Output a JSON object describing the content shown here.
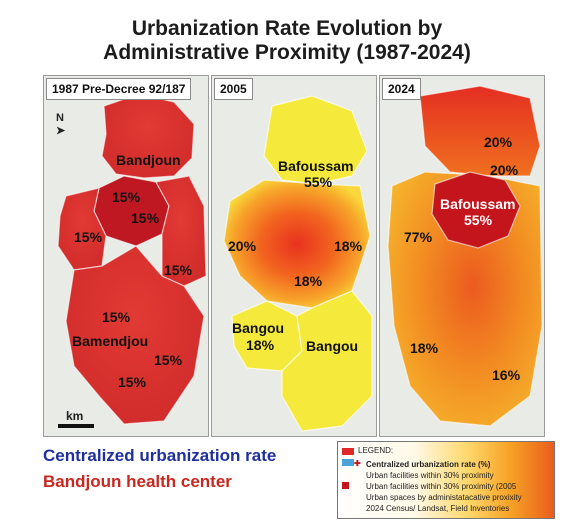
{
  "title_line1": "Urbanization Rate Evolution by",
  "title_line2": "Administrative Proximity (1987-2024)",
  "panels": [
    {
      "tag": "1987 Pre-Decree 92/187",
      "north": "N",
      "scale": "km",
      "labels": [
        {
          "text": "Bandjoun"
        },
        {
          "text": "15%"
        },
        {
          "text": "15%"
        },
        {
          "text": "15%"
        },
        {
          "text": "15%"
        },
        {
          "text": "15%"
        },
        {
          "text": "Bamendjou"
        },
        {
          "text": "15%"
        },
        {
          "text": "15%"
        }
      ]
    },
    {
      "tag": "2005",
      "labels": [
        {
          "text": "Bafoussam"
        },
        {
          "text": "55%"
        },
        {
          "text": "20%"
        },
        {
          "text": "18%"
        },
        {
          "text": "18%"
        },
        {
          "text": "Bangou"
        },
        {
          "text": "18%"
        },
        {
          "text": "Bangou"
        }
      ]
    },
    {
      "tag": "2024",
      "labels": [
        {
          "text": "20%"
        },
        {
          "text": "20%"
        },
        {
          "text": "Bafoussam"
        },
        {
          "text": "55%"
        },
        {
          "text": "77%"
        },
        {
          "text": "18%"
        },
        {
          "text": "16%"
        }
      ]
    }
  ],
  "bottom_text": {
    "line1": "Centralized urbanization rate",
    "line2": "Bandjoun health center"
  },
  "legend": {
    "title": "LEGEND:",
    "items": [
      "Centralized urbanization rate (%)",
      "Urban facilities within 30% proximity",
      "Urban facilities within 30% proximity (2005",
      "Urban spaces by administatacative proxixity",
      "2024 Census/ Landsat, Field Inventories"
    ]
  },
  "colors": {
    "red_region": "#d92e2e",
    "dark_red": "#c4151d",
    "yellow": "#f4ea3a",
    "orange": "#f39a2c",
    "legend_red": "#e02a2a",
    "legend_blue": "#4aa3d8",
    "title_blue": "#1f2f9e",
    "title_red": "#c9271f"
  }
}
